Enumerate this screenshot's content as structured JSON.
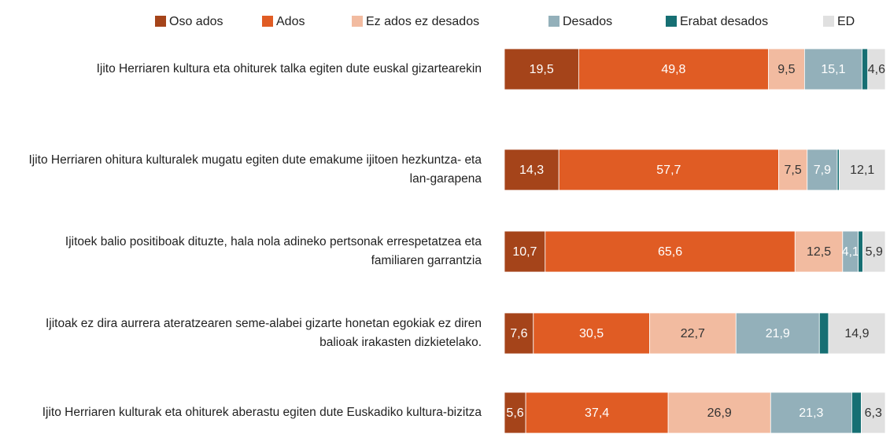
{
  "chart_data": {
    "type": "stacked-barh",
    "categories": [
      "Ijito Herriaren kultura eta ohiturek talka egiten dute euskal gizartearekin",
      "Ijito Herriaren ohitura kulturalek mugatu egiten dute emakume ijitoen hezkuntza- eta lan-garapena",
      "Ijitoek balio positiboak dituzte, hala nola adineko pertsonak errespetatzea eta familiaren garrantzia",
      "Ijitoak ez dira aurrera ateratzearen seme-alabei gizarte honetan egokiak ez diren balioak irakasten dizkietelako.",
      "Ijito Herriaren kulturak eta ohiturek aberastu egiten dute Euskadiko kultura-bizitza"
    ],
    "xlim": [
      0,
      100
    ],
    "legend": "top",
    "series": [
      {
        "name": "Oso ados",
        "color": "#a5441a",
        "values": [
          19.5,
          14.3,
          10.7,
          7.6,
          5.6
        ],
        "value_labels": [
          "19,5",
          "14,3",
          "10,7",
          "7,6",
          "5,6"
        ]
      },
      {
        "name": "Ados",
        "color": "#e05c24",
        "values": [
          49.8,
          57.7,
          65.6,
          30.5,
          37.4
        ],
        "value_labels": [
          "49,8",
          "57,7",
          "65,6",
          "30,5",
          "37,4"
        ]
      },
      {
        "name": "Ez ados ez desados",
        "color": "#f2bba0",
        "values": [
          9.5,
          7.5,
          12.5,
          22.7,
          26.9
        ],
        "value_labels": [
          "9,5",
          "7,5",
          "12,5",
          "22,7",
          "26,9"
        ]
      },
      {
        "name": "Desados",
        "color": "#93b0ba",
        "values": [
          15.1,
          7.9,
          4.1,
          21.9,
          21.3
        ],
        "value_labels": [
          "15,1",
          "7,9",
          "4,1",
          "21,9",
          "21,3"
        ]
      },
      {
        "name": "Erabat desados",
        "color": "#166f73",
        "values": [
          1.5,
          0.5,
          1.2,
          2.4,
          2.5
        ]
      },
      {
        "name": "ED",
        "color": "#e0e0e0",
        "values": [
          4.6,
          12.1,
          5.9,
          14.9,
          6.3
        ],
        "value_labels": [
          "4,6",
          "12,1",
          "5,9",
          "14,9",
          "6,3"
        ]
      }
    ]
  }
}
